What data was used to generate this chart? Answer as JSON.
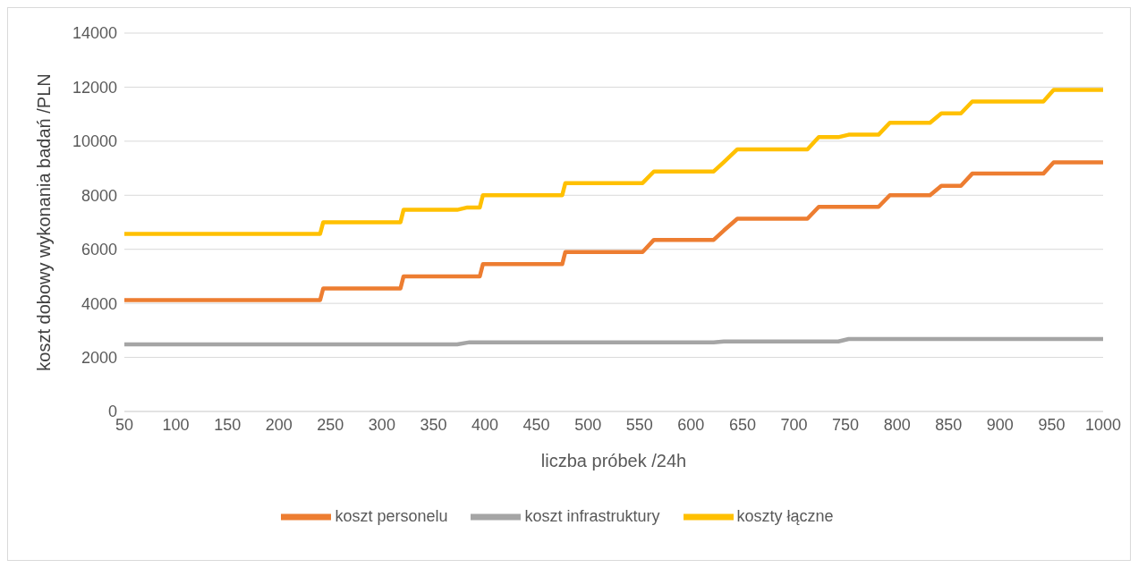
{
  "chart_data": {
    "type": "line",
    "xlabel": "liczba próbek /24h",
    "ylabel": "koszt dobowy wykonania badań /PLN",
    "xlim": [
      50,
      1000
    ],
    "xticks": [
      50,
      100,
      150,
      200,
      250,
      300,
      350,
      400,
      450,
      500,
      550,
      600,
      650,
      700,
      750,
      800,
      850,
      900,
      950,
      1000
    ],
    "ylim": [
      0,
      14000
    ],
    "yticks": [
      0,
      2000,
      4000,
      6000,
      8000,
      10000,
      12000,
      14000
    ],
    "grid": "y",
    "legend": "bottom",
    "marker": "none",
    "line_style": "solid",
    "series": [
      {
        "name": "koszt personelu",
        "color": "#ed7d31",
        "x": [
          50,
          240,
          243,
          318,
          321,
          395,
          398,
          475,
          478,
          553,
          564,
          622,
          632,
          645,
          713,
          724,
          782,
          793,
          832,
          843,
          862,
          873,
          942,
          952,
          1000
        ],
        "values": [
          4120,
          4120,
          4550,
          4550,
          5000,
          5000,
          5450,
          5450,
          5900,
          5900,
          6350,
          6350,
          6700,
          7130,
          7130,
          7570,
          7570,
          8000,
          8000,
          8350,
          8350,
          8800,
          8800,
          9220,
          9220
        ]
      },
      {
        "name": "koszt infrastruktury",
        "color": "#a5a5a5",
        "x": [
          50,
          373,
          385,
          622,
          632,
          743,
          753,
          1000
        ],
        "values": [
          2480,
          2480,
          2560,
          2560,
          2590,
          2590,
          2680,
          2680
        ]
      },
      {
        "name": "koszty łączne",
        "color": "#ffc000",
        "x": [
          50,
          240,
          243,
          318,
          321,
          373,
          383,
          395,
          398,
          475,
          478,
          553,
          564,
          622,
          632,
          645,
          713,
          724,
          743,
          753,
          782,
          793,
          832,
          843,
          862,
          873,
          942,
          952,
          1000
        ],
        "values": [
          6570,
          6570,
          7000,
          7000,
          7460,
          7460,
          7550,
          7550,
          8000,
          8000,
          8450,
          8450,
          8880,
          8880,
          9230,
          9700,
          9700,
          10150,
          10150,
          10240,
          10240,
          10680,
          10680,
          11030,
          11030,
          11470,
          11470,
          11900,
          11900
        ]
      }
    ]
  }
}
